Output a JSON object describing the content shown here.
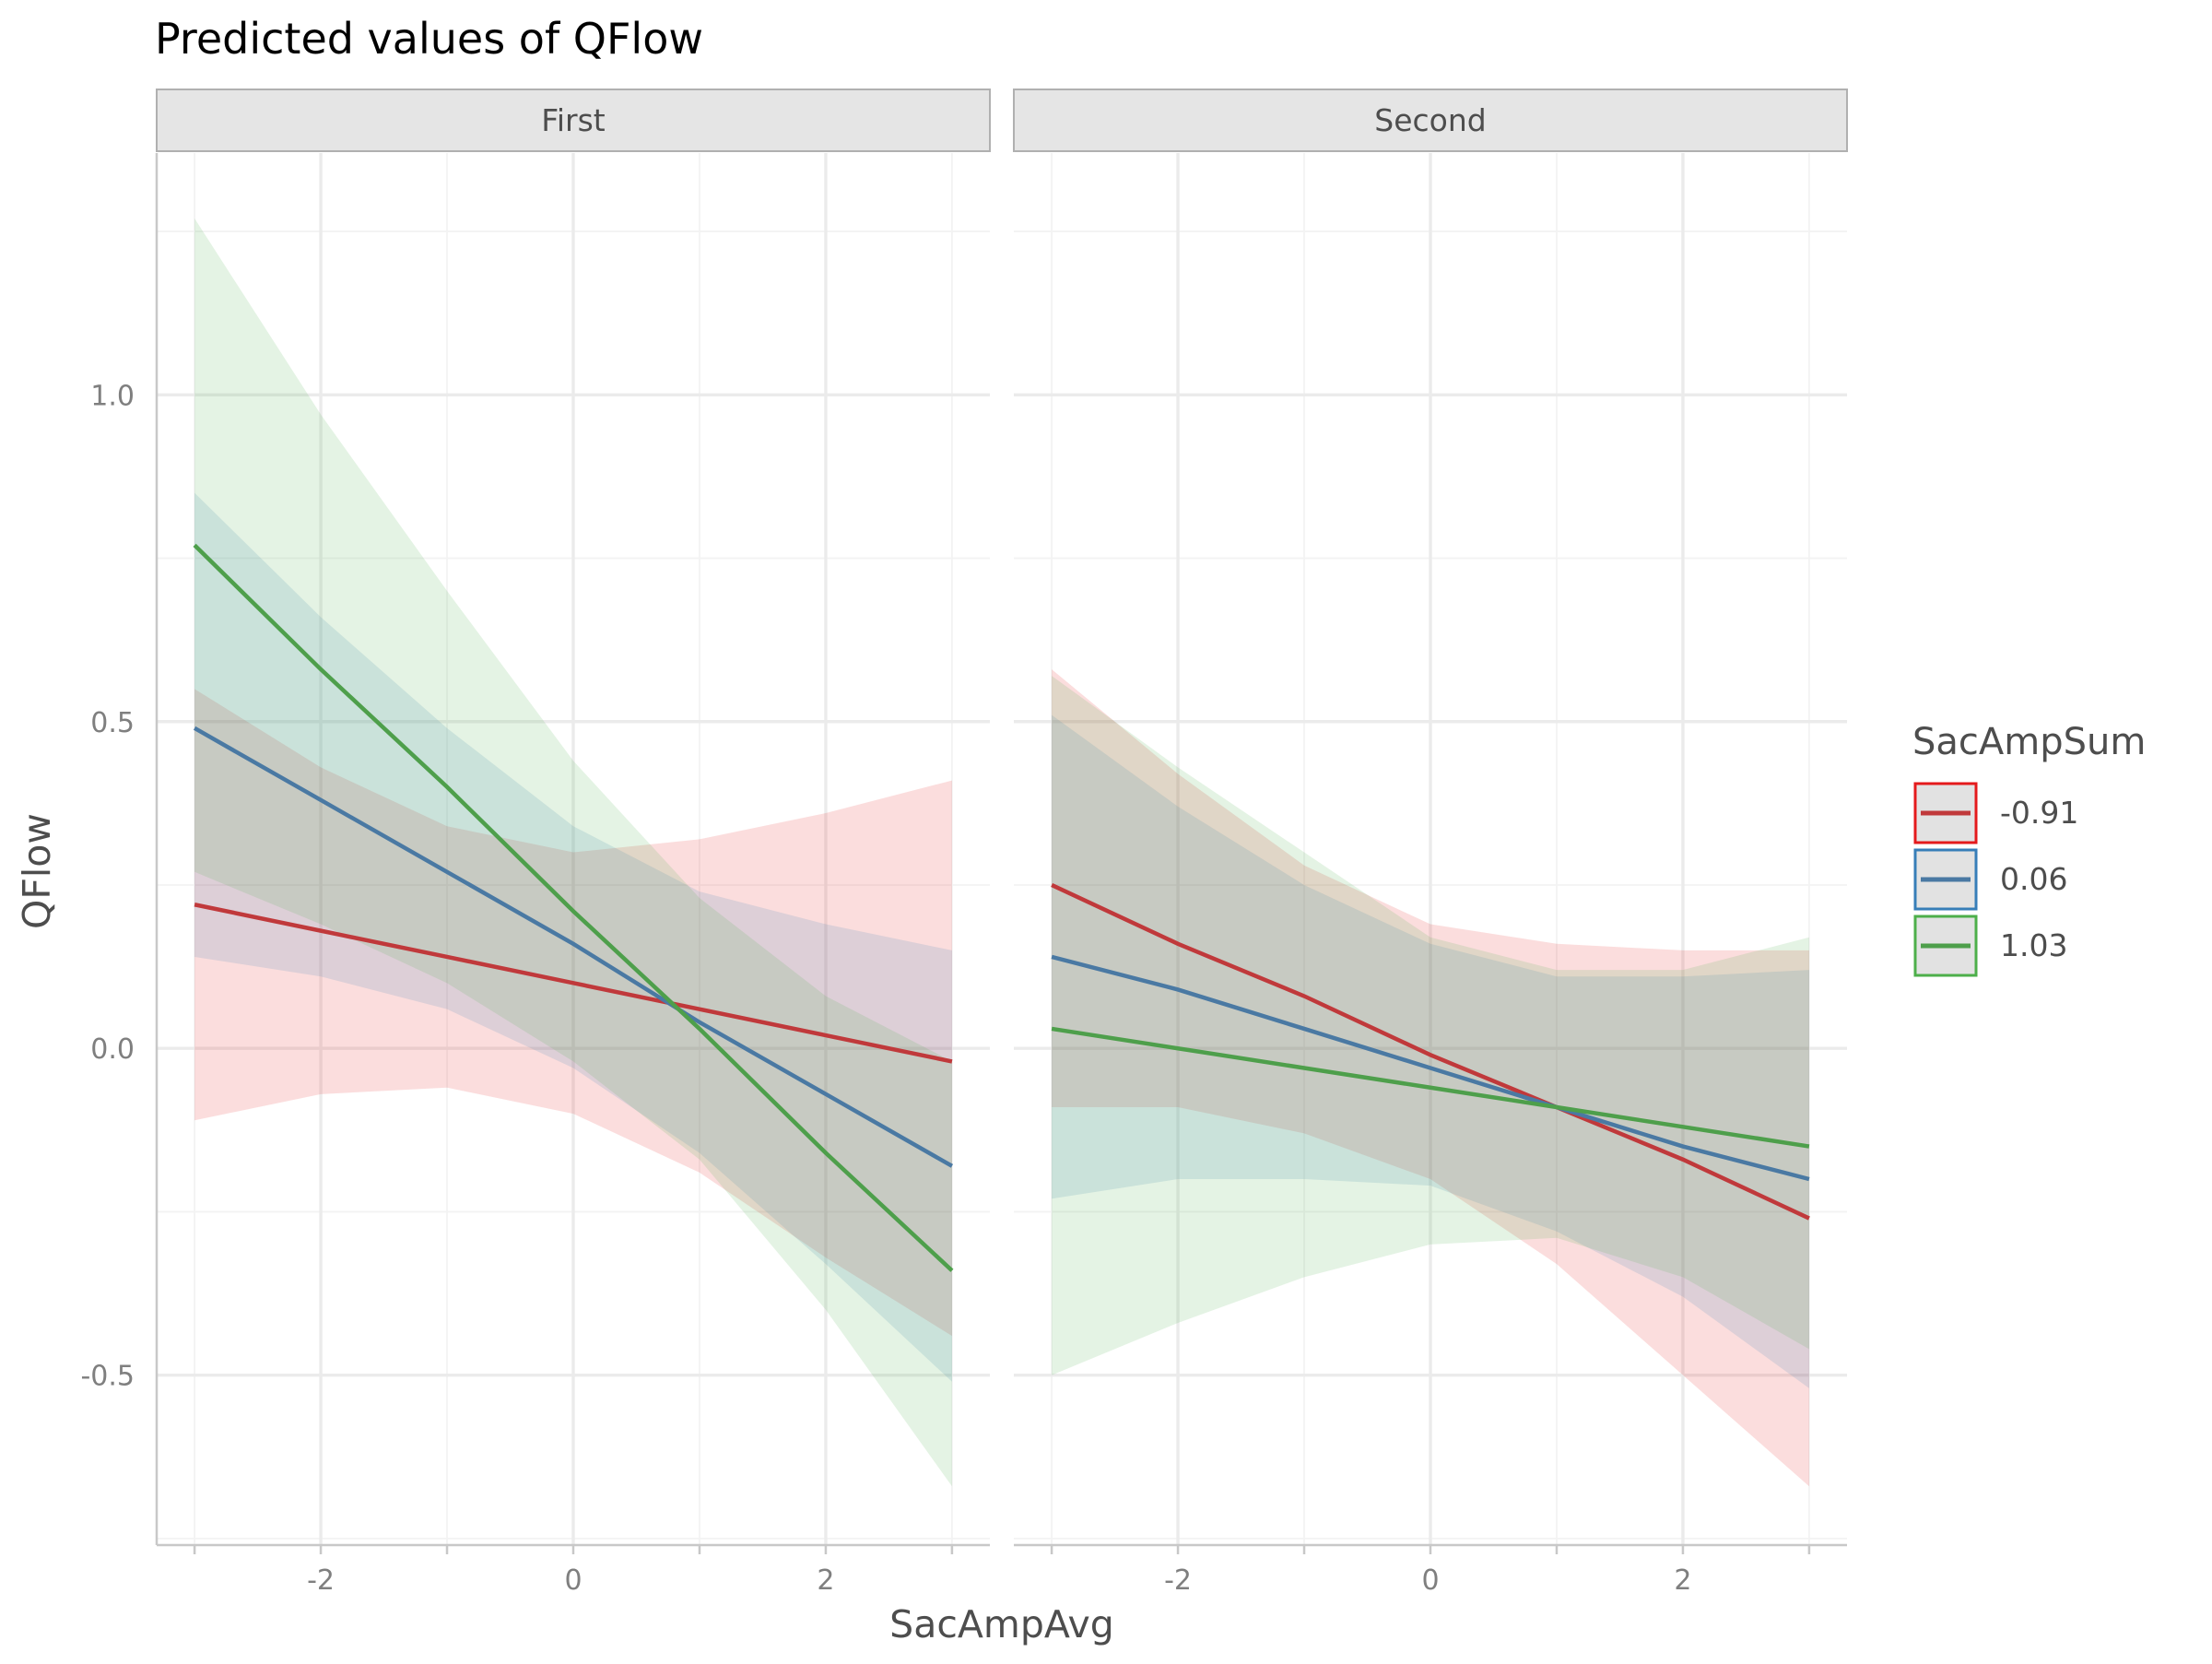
{
  "chart_data": {
    "type": "line",
    "title": "Predicted values of QFlow",
    "xlabel": "SacAmpAvg",
    "ylabel": "QFlow",
    "legend_title": "SacAmpSum",
    "legend_position": "right",
    "xlim": [
      -3.3,
      3.3
    ],
    "ylim": [
      -0.76,
      1.37
    ],
    "x_ticks": [
      -2,
      0,
      2
    ],
    "x_tick_labels": [
      "-2",
      "0",
      "2"
    ],
    "y_ticks": [
      -0.5,
      0.0,
      0.5,
      1.0
    ],
    "y_tick_labels": [
      "-0.5",
      "0.0",
      "0.5",
      "1.0"
    ],
    "grid": true,
    "colors": {
      "-0.91": "#c0393b",
      "0.06": "#4a79a3",
      "1.03": "#4e9f4b"
    },
    "band_colors": {
      "-0.91": "#e41a1c",
      "0.06": "#377eb8",
      "1.03": "#4daf4a"
    },
    "legend_box_colors": {
      "-0.91": "#e41a1c",
      "0.06": "#377eb8",
      "1.03": "#4daf4a"
    },
    "x": [
      -3,
      -2,
      -1,
      0,
      1,
      2,
      3
    ],
    "panels": [
      {
        "label": "First",
        "series": [
          {
            "name": "-0.91",
            "values": [
              0.22,
              0.18,
              0.14,
              0.1,
              0.06,
              0.02,
              -0.02
            ],
            "lower": [
              -0.11,
              -0.07,
              -0.06,
              -0.1,
              -0.19,
              -0.32,
              -0.44
            ],
            "upper": [
              0.55,
              0.43,
              0.34,
              0.3,
              0.32,
              0.36,
              0.41
            ]
          },
          {
            "name": "0.06",
            "values": [
              0.49,
              0.38,
              0.27,
              0.16,
              0.04,
              -0.07,
              -0.18
            ],
            "lower": [
              0.14,
              0.11,
              0.06,
              -0.03,
              -0.16,
              -0.33,
              -0.51
            ],
            "upper": [
              0.85,
              0.66,
              0.49,
              0.34,
              0.24,
              0.19,
              0.15
            ]
          },
          {
            "name": "1.03",
            "values": [
              0.77,
              0.58,
              0.4,
              0.21,
              0.03,
              -0.16,
              -0.34
            ],
            "lower": [
              0.27,
              0.19,
              0.1,
              -0.02,
              -0.17,
              -0.4,
              -0.67
            ],
            "upper": [
              1.27,
              0.97,
              0.7,
              0.44,
              0.23,
              0.08,
              -0.02
            ]
          }
        ]
      },
      {
        "label": "Second",
        "series": [
          {
            "name": "-0.91",
            "values": [
              0.25,
              0.16,
              0.08,
              -0.01,
              -0.09,
              -0.17,
              -0.26
            ],
            "lower": [
              -0.09,
              -0.09,
              -0.13,
              -0.2,
              -0.33,
              -0.5,
              -0.67
            ],
            "upper": [
              0.58,
              0.42,
              0.28,
              0.19,
              0.16,
              0.15,
              0.15
            ]
          },
          {
            "name": "0.06",
            "values": [
              0.14,
              0.09,
              0.03,
              -0.03,
              -0.09,
              -0.15,
              -0.2
            ],
            "lower": [
              -0.23,
              -0.2,
              -0.2,
              -0.21,
              -0.28,
              -0.38,
              -0.52
            ],
            "upper": [
              0.51,
              0.37,
              0.25,
              0.16,
              0.11,
              0.11,
              0.12
            ]
          },
          {
            "name": "1.03",
            "values": [
              0.03,
              0.0,
              -0.03,
              -0.06,
              -0.09,
              -0.12,
              -0.15
            ],
            "lower": [
              -0.5,
              -0.42,
              -0.35,
              -0.3,
              -0.29,
              -0.35,
              -0.46
            ],
            "upper": [
              0.57,
              0.43,
              0.3,
              0.17,
              0.12,
              0.12,
              0.17
            ]
          }
        ]
      }
    ]
  }
}
